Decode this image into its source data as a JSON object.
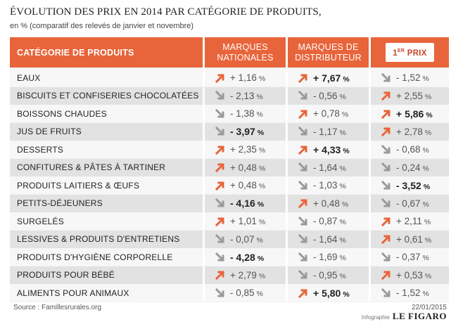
{
  "title": "ÉVOLUTION DES PRIX EN 2014 PAR CATÉGORIE DE PRODUITS,",
  "subtitle": "en % (comparatif des relevés de janvier et novembre)",
  "colors": {
    "header": "#e8643a",
    "up": "#e8643a",
    "down": "#9a9a9a"
  },
  "chart_data": {
    "type": "table",
    "title": "ÉVOLUTION DES PRIX EN 2014 PAR CATÉGORIE DE PRODUITS,",
    "subtitle": "en % (comparatif des relevés de janvier et novembre)",
    "header": {
      "category": "CATÉGORIE DE PRODUITS",
      "col1": "MARQUES\nNATIONALES",
      "col2": "MARQUES DE\nDISTRIBUTEUR",
      "col3_sup": "ER",
      "col3_num": "1",
      "col3_word": " PRIX"
    },
    "rows": [
      {
        "category": "EAUX",
        "values": [
          {
            "text": "+ 1,16",
            "value": 1.16,
            "dir": "up",
            "bold": false
          },
          {
            "text": "+ 7,67",
            "value": 7.67,
            "dir": "up",
            "bold": true
          },
          {
            "text": "- 1,52",
            "value": -1.52,
            "dir": "down",
            "bold": false
          }
        ]
      },
      {
        "category": "BISCUITS ET CONFISERIES CHOCOLATÉES",
        "values": [
          {
            "text": "- 2,13",
            "value": -2.13,
            "dir": "down",
            "bold": false
          },
          {
            "text": "- 0,56",
            "value": -0.56,
            "dir": "down",
            "bold": false
          },
          {
            "text": "+ 2,55",
            "value": 2.55,
            "dir": "up",
            "bold": false
          }
        ]
      },
      {
        "category": "BOISSONS CHAUDES",
        "values": [
          {
            "text": "- 1,38",
            "value": -1.38,
            "dir": "down",
            "bold": false
          },
          {
            "text": "+ 0,78",
            "value": 0.78,
            "dir": "up",
            "bold": false
          },
          {
            "text": "+ 5,86",
            "value": 5.86,
            "dir": "up",
            "bold": true
          }
        ]
      },
      {
        "category": "JUS DE FRUITS",
        "values": [
          {
            "text": "- 3,97",
            "value": -3.97,
            "dir": "down",
            "bold": true
          },
          {
            "text": "- 1,17",
            "value": -1.17,
            "dir": "down",
            "bold": false
          },
          {
            "text": "+ 2,78",
            "value": 2.78,
            "dir": "up",
            "bold": false
          }
        ]
      },
      {
        "category": "DESSERTS",
        "values": [
          {
            "text": "+ 2,35",
            "value": 2.35,
            "dir": "up",
            "bold": false
          },
          {
            "text": "+ 4,33",
            "value": 4.33,
            "dir": "up",
            "bold": true
          },
          {
            "text": "- 0,68",
            "value": -0.68,
            "dir": "down",
            "bold": false
          }
        ]
      },
      {
        "category": "CONFITURES & PÂTES À TARTINER",
        "values": [
          {
            "text": "+ 0,48",
            "value": 0.48,
            "dir": "up",
            "bold": false
          },
          {
            "text": "- 1,64",
            "value": -1.64,
            "dir": "down",
            "bold": false
          },
          {
            "text": "- 0,24",
            "value": -0.24,
            "dir": "down",
            "bold": false
          }
        ]
      },
      {
        "category": "PRODUITS LAITIERS & ŒUFS",
        "values": [
          {
            "text": "+ 0,48",
            "value": 0.48,
            "dir": "up",
            "bold": false
          },
          {
            "text": "- 1,03",
            "value": -1.03,
            "dir": "down",
            "bold": false
          },
          {
            "text": "- 3,52",
            "value": -3.52,
            "dir": "down",
            "bold": true
          }
        ]
      },
      {
        "category": "PETITS-DÉJEUNERS",
        "values": [
          {
            "text": "- 4,16",
            "value": -4.16,
            "dir": "down",
            "bold": true
          },
          {
            "text": "+ 0,48",
            "value": 0.48,
            "dir": "up",
            "bold": false
          },
          {
            "text": "- 0,67",
            "value": -0.67,
            "dir": "down",
            "bold": false
          }
        ]
      },
      {
        "category": "SURGELÉS",
        "values": [
          {
            "text": "+ 1,01",
            "value": 1.01,
            "dir": "up",
            "bold": false
          },
          {
            "text": "- 0,87",
            "value": -0.87,
            "dir": "down",
            "bold": false
          },
          {
            "text": "+ 2,11",
            "value": 2.11,
            "dir": "up",
            "bold": false
          }
        ]
      },
      {
        "category": "LESSIVES & PRODUITS D'ENTRETIENS",
        "values": [
          {
            "text": "- 0,07",
            "value": -0.07,
            "dir": "down",
            "bold": false
          },
          {
            "text": "- 1,64",
            "value": -1.64,
            "dir": "down",
            "bold": false
          },
          {
            "text": "+ 0,61",
            "value": 0.61,
            "dir": "up",
            "bold": false
          }
        ]
      },
      {
        "category": "PRODUITS D'HYGIÈNE CORPORELLE",
        "values": [
          {
            "text": "- 4,28",
            "value": -4.28,
            "dir": "down",
            "bold": true
          },
          {
            "text": "- 1,69",
            "value": -1.69,
            "dir": "down",
            "bold": false
          },
          {
            "text": "- 0,37",
            "value": -0.37,
            "dir": "down",
            "bold": false
          }
        ]
      },
      {
        "category": "PRODUITS POUR BÉBÉ",
        "values": [
          {
            "text": "+ 2,79",
            "value": 2.79,
            "dir": "up",
            "bold": false
          },
          {
            "text": "- 0,95",
            "value": -0.95,
            "dir": "down",
            "bold": false
          },
          {
            "text": "+ 0,53",
            "value": 0.53,
            "dir": "up",
            "bold": false
          }
        ]
      },
      {
        "category": "ALIMENTS POUR ANIMAUX",
        "values": [
          {
            "text": "- 0,85",
            "value": -0.85,
            "dir": "down",
            "bold": false
          },
          {
            "text": "+ 5,80",
            "value": 5.8,
            "dir": "up",
            "bold": true
          },
          {
            "text": "- 1,52",
            "value": -1.52,
            "dir": "down",
            "bold": false
          }
        ]
      }
    ],
    "unit": "%"
  },
  "footer": {
    "source": "Source : Famillesrurales.org",
    "date": "22/01/2015",
    "credit_prefix": "Infographie",
    "credit_brand": "LE FIGARO"
  }
}
